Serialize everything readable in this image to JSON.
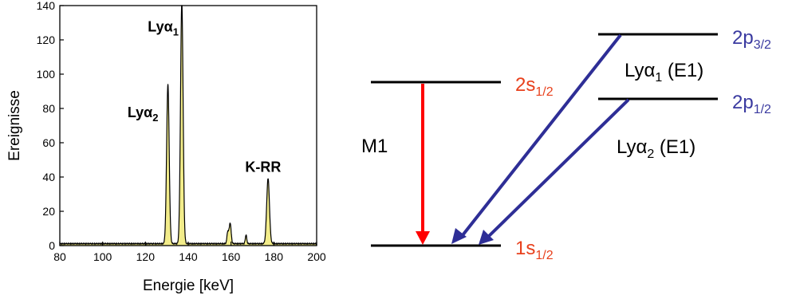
{
  "chart_data": {
    "type": "line",
    "title": "",
    "xlabel": "Energie  [keV]",
    "ylabel": "Ereignisse",
    "xlim": [
      80,
      200
    ],
    "ylim": [
      0,
      140
    ],
    "x_ticks": [
      "80",
      "100",
      "120",
      "140",
      "160",
      "180",
      "200"
    ],
    "y_ticks": [
      "0",
      "20",
      "40",
      "60",
      "80",
      "100",
      "120",
      "140"
    ],
    "grid": false,
    "fill_color": "#f2ec8a",
    "line_color": "#000000",
    "peaks": [
      {
        "name": "Lyα2",
        "center": 130.5,
        "height": 93,
        "width": 0.6
      },
      {
        "name": "Lyα1",
        "center": 137.0,
        "height": 141,
        "width": 0.6
      },
      {
        "name": "",
        "center": 158.5,
        "height": 7,
        "width": 0.4
      },
      {
        "name": "",
        "center": 159.6,
        "height": 12,
        "width": 0.45
      },
      {
        "name": "",
        "center": 167.0,
        "height": 5,
        "width": 0.35
      },
      {
        "name": "K-RR",
        "center": 177.3,
        "height": 38,
        "width": 0.65
      }
    ],
    "annotations": [
      {
        "base": "Lyα",
        "sub": "1",
        "x": 137,
        "y": 125
      },
      {
        "base": "Lyα",
        "sub": "2",
        "x": 129,
        "y": 75
      },
      {
        "base": "K-RR",
        "sub": "",
        "x": 175,
        "y": 43
      }
    ]
  },
  "diagram": {
    "levels": [
      {
        "base": "2p",
        "sub": "3/2",
        "color": "#3a3aa0"
      },
      {
        "base": "2s",
        "sub": "1/2",
        "color": "#e8401c"
      },
      {
        "base": "2p",
        "sub": "1/2",
        "color": "#3a3aa0"
      },
      {
        "base": "1s",
        "sub": "1/2",
        "color": "#e8401c"
      }
    ],
    "transitions": [
      {
        "base": "Lyα",
        "sub": "1",
        "suffix": " (E1)",
        "color": "#2e2e96"
      },
      {
        "base": "Lyα",
        "sub": "2",
        "suffix": " (E1)",
        "color": "#2e2e96"
      },
      {
        "label": "M1",
        "color": "#ff0000"
      }
    ]
  }
}
